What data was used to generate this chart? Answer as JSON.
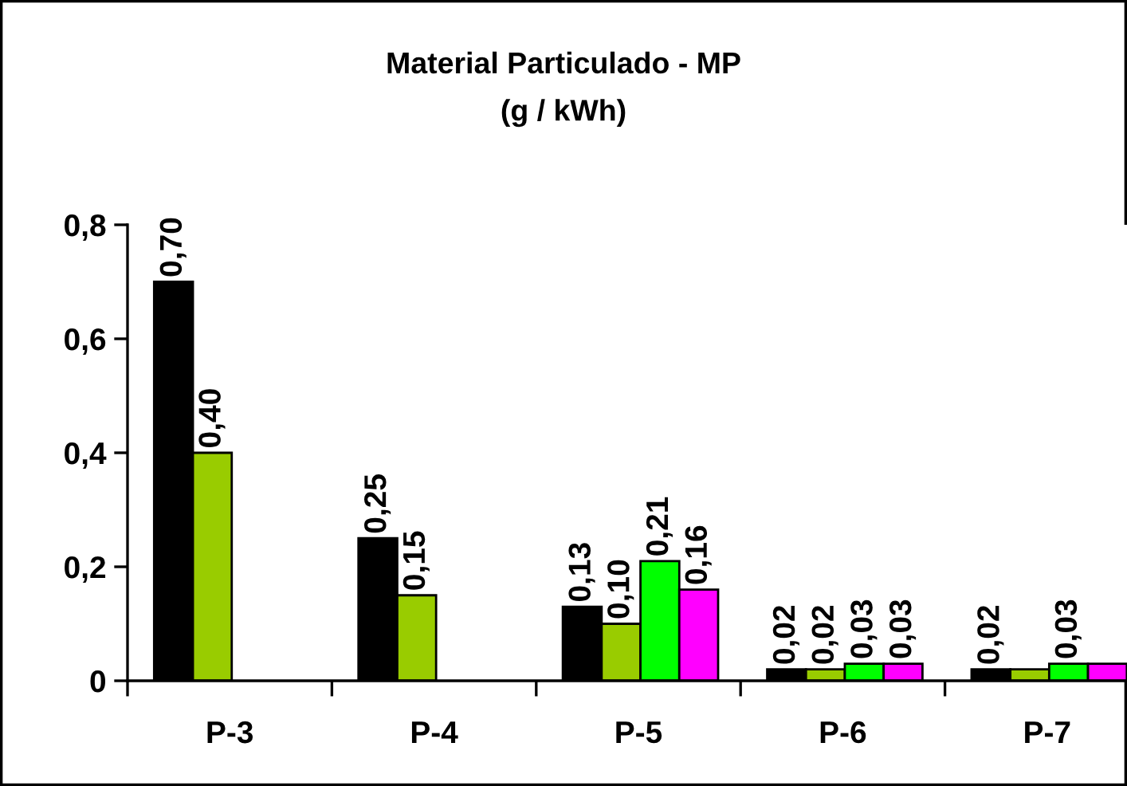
{
  "chart_data": {
    "type": "bar",
    "title": "Material Particulado - MP\n(g / kWh)",
    "categories": [
      "P-3",
      "P-4",
      "P-5",
      "P-6",
      "P-7"
    ],
    "series": [
      {
        "color": "#000000",
        "values": [
          0.7,
          0.25,
          0.13,
          0.02,
          0.02
        ],
        "value_labels": [
          "0,70",
          "0,25",
          "0,13",
          "0,02",
          "0,02"
        ]
      },
      {
        "color": "#99cc00",
        "values": [
          0.4,
          0.15,
          0.1,
          0.02,
          0.02
        ],
        "value_labels": [
          "0,40",
          "0,15",
          "0,10",
          "0,02",
          null
        ]
      },
      {
        "color": "#00ff00",
        "values": [
          null,
          null,
          0.21,
          0.03,
          0.03
        ],
        "value_labels": [
          null,
          null,
          "0,21",
          "0,03",
          "0,03"
        ]
      },
      {
        "color": "#ff00ff",
        "values": [
          null,
          null,
          0.16,
          0.03,
          0.03
        ],
        "value_labels": [
          null,
          null,
          "0,16",
          "0,03",
          null
        ]
      }
    ],
    "ylim": [
      0,
      0.8
    ],
    "yticks": [
      0,
      {
        "value": 0.2,
        "label": "0,2"
      },
      {
        "value": 0.4,
        "label": "0,4"
      },
      {
        "value": 0.6,
        "label": "0,6"
      },
      {
        "value": 0.8,
        "label": "0,8"
      }
    ],
    "grid": false,
    "legend": false
  }
}
